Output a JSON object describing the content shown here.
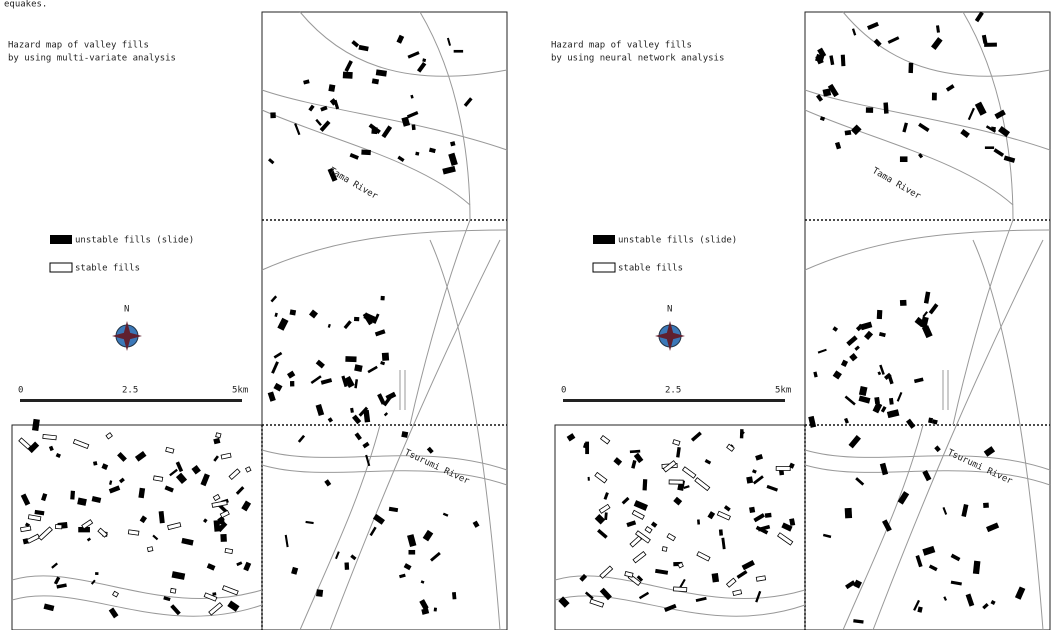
{
  "fragment": "equakes.",
  "panels": [
    {
      "title": [
        "Hazard map of valley fills",
        "by using multi-variate analysis"
      ],
      "legend": {
        "unstable": "unstable fills (slide)",
        "stable": "stable fills"
      },
      "north": "N",
      "scale": [
        "0",
        "2.5",
        "5km"
      ],
      "rivers": [
        "Tama River",
        "Tsurumi River"
      ]
    },
    {
      "title": [
        "Hazard map of valley fills",
        "by using neural network analysis"
      ],
      "legend": {
        "unstable": "unstable fills (slide)",
        "stable": "stable fills"
      },
      "north": "N",
      "scale": [
        "0",
        "2.5",
        "5km"
      ],
      "rivers": [
        "Tama River",
        "Tsurumi River"
      ]
    }
  ]
}
